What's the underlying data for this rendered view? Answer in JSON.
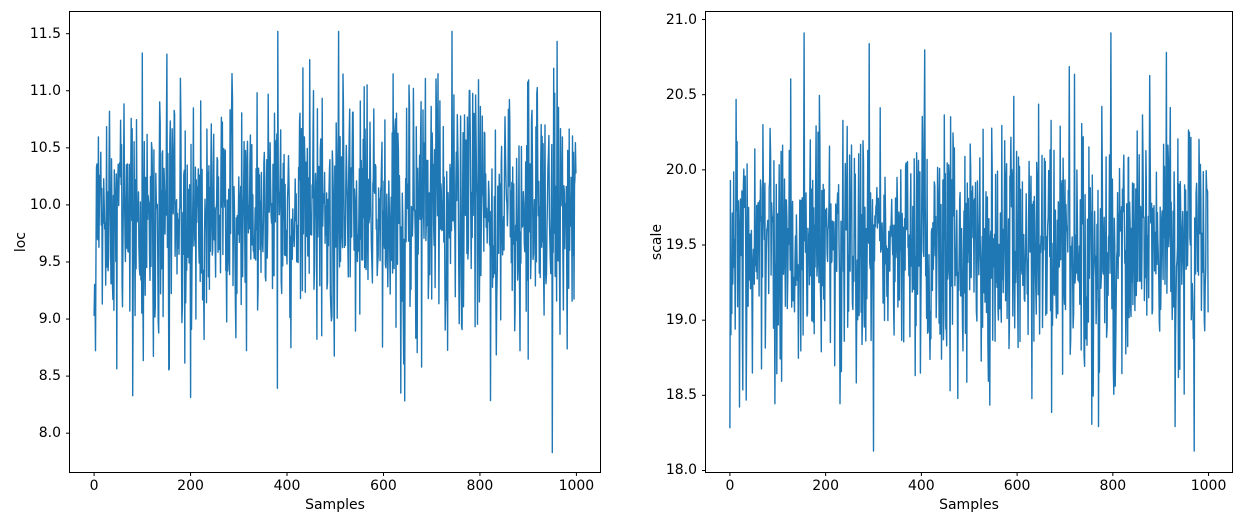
{
  "chart_data": [
    {
      "type": "line",
      "title": "",
      "xlabel": "Samples",
      "ylabel": "loc",
      "line_color": "#1f77b4",
      "axis_color": "#000000",
      "background": "#ffffff",
      "grid": false,
      "legend": "none",
      "n_samples": 1000,
      "xlim": [
        -49.95,
        1048.95
      ],
      "ylim": [
        7.66,
        11.69
      ],
      "xtick_labels": [
        "0",
        "200",
        "400",
        "600",
        "800",
        "1000"
      ],
      "ytick_labels": [
        "8.0",
        "8.5",
        "9.0",
        "9.5",
        "10.0",
        "10.5",
        "11.0",
        "11.5"
      ],
      "series_stats": {
        "mean": 9.92,
        "std": 0.55,
        "min": 7.83,
        "min_at_sample": 950,
        "max": 11.52,
        "max_at_sample": 742
      },
      "render_seed": 13
    },
    {
      "type": "line",
      "title": "",
      "xlabel": "Samples",
      "ylabel": "scale",
      "line_color": "#1f77b4",
      "axis_color": "#000000",
      "background": "#ffffff",
      "grid": false,
      "legend": "none",
      "n_samples": 1000,
      "xlim": [
        -49.95,
        1048.95
      ],
      "ylim": [
        17.99,
        21.05
      ],
      "xtick_labels": [
        "0",
        "200",
        "400",
        "600",
        "800",
        "1000"
      ],
      "ytick_labels": [
        "18.0",
        "18.5",
        "19.0",
        "19.5",
        "20.0",
        "20.5",
        "21.0"
      ],
      "series_stats": {
        "mean": 19.48,
        "std": 0.44,
        "min": 18.13,
        "min_at_sample": 970,
        "max": 20.91,
        "max_at_sample": 796
      },
      "render_seed": 29
    }
  ]
}
